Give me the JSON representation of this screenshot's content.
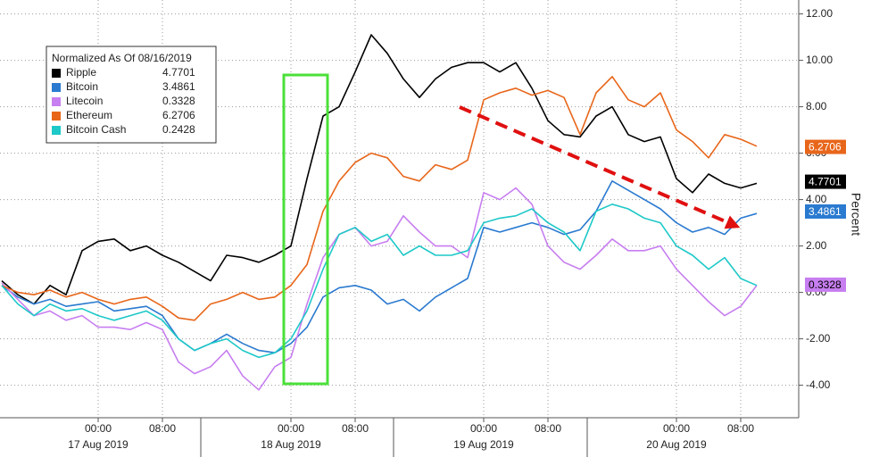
{
  "chart_data": {
    "type": "line",
    "y_label": "Percent",
    "legend_title": "Normalized As Of 08/16/2019",
    "categories": [
      null,
      null,
      null,
      null,
      null,
      null,
      "00:00",
      null,
      null,
      null,
      "08:00",
      null,
      null,
      null,
      null,
      null,
      null,
      null,
      "00:00",
      null,
      null,
      null,
      "08:00",
      null,
      null,
      null,
      null,
      null,
      null,
      null,
      "00:00",
      null,
      null,
      null,
      "08:00",
      null,
      null,
      null,
      null,
      null,
      null,
      null,
      "00:00",
      null,
      null,
      null,
      "08:00",
      null
    ],
    "date_labels": [
      "17 Aug 2019",
      "18 Aug 2019",
      "19 Aug 2019",
      "20 Aug 2019"
    ],
    "ylim": [
      -5.4,
      12.6
    ],
    "yticks": [
      {
        "value": -4,
        "label": "-4.00"
      },
      {
        "value": -2,
        "label": "-2.00"
      },
      {
        "value": 0,
        "label": "0.00"
      },
      {
        "value": 2,
        "label": "2.00"
      },
      {
        "value": 4,
        "label": "4.00"
      },
      {
        "value": 6,
        "label": "6.00"
      },
      {
        "value": 8,
        "label": "8.00"
      },
      {
        "value": 10,
        "label": "10.00"
      },
      {
        "value": 12,
        "label": "12.00"
      }
    ],
    "grid": true,
    "series": [
      {
        "name": "Ripple",
        "color": "#000000",
        "last": 4.7701,
        "tag": true,
        "values": [
          0.5,
          -0.1,
          -0.5,
          0.3,
          -0.1,
          1.8,
          2.2,
          2.3,
          1.8,
          2.0,
          1.6,
          1.3,
          0.9,
          0.5,
          1.6,
          1.5,
          1.3,
          1.6,
          2.0,
          4.9,
          7.6,
          8.0,
          9.5,
          11.1,
          10.3,
          9.2,
          8.4,
          9.2,
          9.7,
          9.9,
          9.9,
          9.5,
          9.9,
          8.8,
          7.4,
          6.8,
          6.7,
          7.6,
          8.0,
          6.8,
          6.5,
          6.7,
          4.9,
          4.3,
          5.1,
          4.7,
          4.5,
          4.7
        ]
      },
      {
        "name": "Bitcoin",
        "color": "#2a7ad0",
        "last": 3.4861,
        "tag": true,
        "values": [
          0.3,
          -0.2,
          -0.5,
          -0.3,
          -0.6,
          -0.5,
          -0.4,
          -0.8,
          -0.7,
          -0.6,
          -1.0,
          -2.0,
          -2.5,
          -2.2,
          -1.8,
          -2.2,
          -2.5,
          -2.6,
          -2.2,
          -1.5,
          -0.2,
          0.2,
          0.3,
          0.1,
          -0.5,
          -0.3,
          -0.8,
          -0.2,
          0.2,
          0.6,
          2.8,
          2.6,
          2.8,
          3.0,
          2.8,
          2.5,
          2.7,
          3.5,
          4.8,
          4.4,
          4.0,
          3.6,
          3.0,
          2.6,
          2.8,
          2.5,
          3.2,
          3.4
        ]
      },
      {
        "name": "Litecoin",
        "color": "#c77ef0",
        "last": 0.3328,
        "tag": true,
        "values": [
          0.4,
          -0.3,
          -1.0,
          -0.8,
          -1.2,
          -1.0,
          -1.5,
          -1.5,
          -1.6,
          -1.3,
          -1.6,
          -3.0,
          -3.5,
          -3.2,
          -2.5,
          -3.6,
          -4.2,
          -3.2,
          -2.8,
          -0.5,
          1.5,
          2.5,
          2.8,
          2.0,
          2.2,
          3.3,
          2.6,
          2.0,
          2.0,
          1.5,
          4.3,
          4.0,
          4.5,
          3.8,
          2.0,
          1.3,
          1.0,
          1.6,
          2.3,
          1.8,
          1.8,
          2.0,
          1.0,
          0.3,
          -0.4,
          -1.0,
          -0.6,
          0.3
        ]
      },
      {
        "name": "Ethereum",
        "color": "#e8661a",
        "last": 6.2706,
        "tag": true,
        "values": [
          0.3,
          0.0,
          -0.1,
          0.1,
          -0.2,
          0.0,
          -0.3,
          -0.5,
          -0.3,
          -0.2,
          -0.6,
          -1.1,
          -1.2,
          -0.5,
          -0.3,
          0.0,
          -0.3,
          -0.2,
          0.3,
          1.2,
          3.5,
          4.8,
          5.6,
          6.0,
          5.8,
          5.0,
          4.8,
          5.5,
          5.3,
          5.7,
          8.3,
          8.6,
          8.8,
          8.5,
          8.7,
          8.4,
          6.8,
          8.6,
          9.3,
          8.3,
          8.0,
          8.6,
          7.0,
          6.5,
          5.8,
          6.8,
          6.6,
          6.3
        ]
      },
      {
        "name": "Bitcoin Cash",
        "color": "#1ec8c8",
        "last": 0.2428,
        "tag": false,
        "values": [
          0.3,
          -0.5,
          -1.0,
          -0.5,
          -0.8,
          -0.7,
          -1.0,
          -1.2,
          -1.0,
          -0.8,
          -1.2,
          -2.0,
          -2.5,
          -2.2,
          -2.0,
          -2.5,
          -2.8,
          -2.6,
          -2.0,
          -0.8,
          1.0,
          2.5,
          2.8,
          2.2,
          2.5,
          1.6,
          2.0,
          1.6,
          1.6,
          1.8,
          3.0,
          3.2,
          3.3,
          3.6,
          3.0,
          2.6,
          1.8,
          3.5,
          3.8,
          3.6,
          3.2,
          3.0,
          2.0,
          1.6,
          1.0,
          1.5,
          0.6,
          0.3
        ]
      }
    ]
  }
}
